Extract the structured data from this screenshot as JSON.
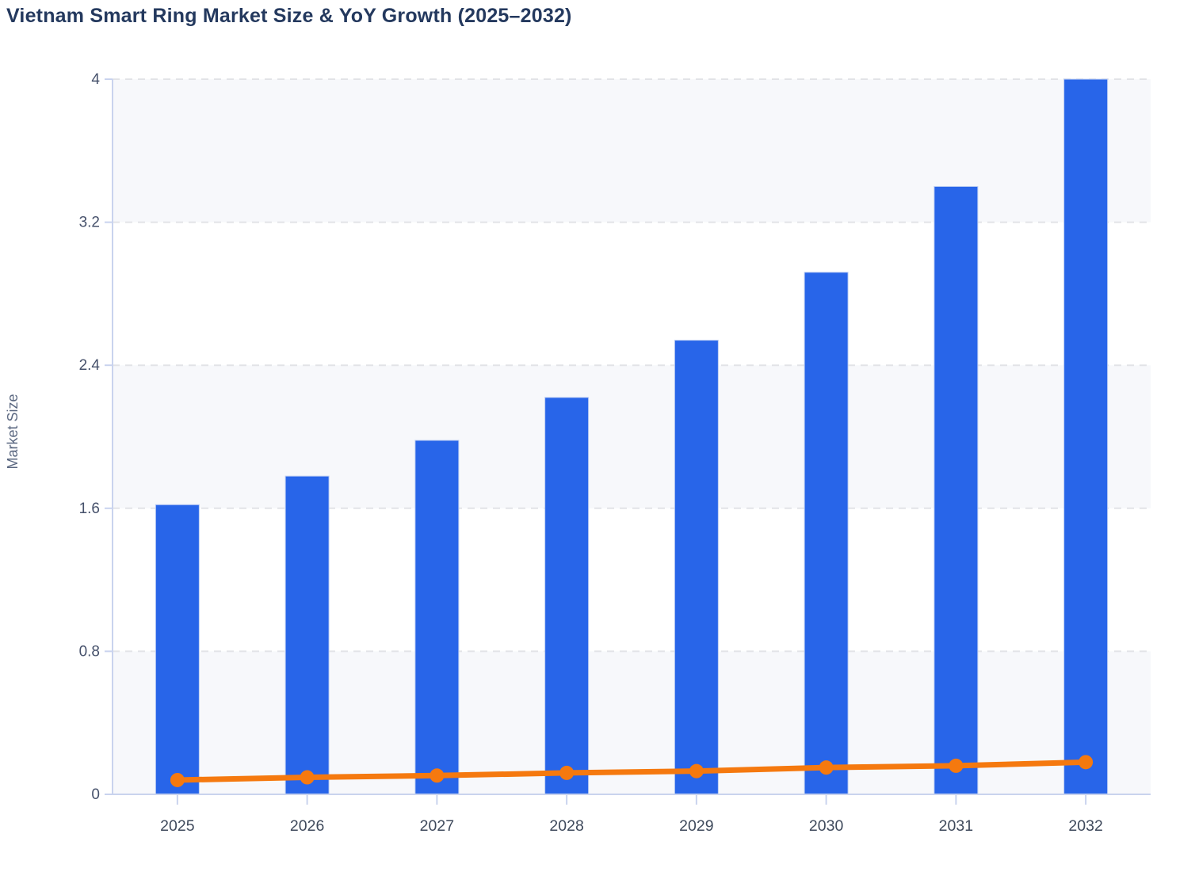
{
  "title": "Vietnam Smart Ring Market Size & YoY Growth (2025–2032)",
  "colors": {
    "bar": "#2865E9",
    "bar_stroke": "#BCCDF3",
    "line": "#F5790F",
    "title": "#24395E",
    "axis_line": "#C9D3EE",
    "grid": "#E2E3E7",
    "band": "#F7F8FB",
    "y_tick_label": "#46516B",
    "x_tick_label": "#3F4A5C",
    "axis_title": "#5A6780",
    "background": "#FFFFFF"
  },
  "chart_data": {
    "type": "bar",
    "title": "Vietnam Smart Ring Market Size & YoY Growth (2025–2032)",
    "categories": [
      "2025",
      "2026",
      "2027",
      "2028",
      "2029",
      "2030",
      "2031",
      "2032"
    ],
    "series": [
      {
        "name": "Market Size",
        "type": "bar",
        "values": [
          1.62,
          1.78,
          1.98,
          2.22,
          2.54,
          2.92,
          3.4,
          4.0
        ],
        "color": "#2865E9"
      },
      {
        "name": "YoY Growth",
        "type": "line",
        "values": [
          0.08,
          0.095,
          0.105,
          0.12,
          0.13,
          0.15,
          0.16,
          0.18
        ],
        "color": "#F5790F"
      }
    ],
    "xlabel": "",
    "ylabel": "Market Size",
    "ylim": [
      0,
      4
    ],
    "yticks": [
      0,
      0.8,
      1.6,
      2.4,
      3.2,
      4
    ],
    "grid": "horizontal-dashed",
    "alternating_bands": [
      [
        0,
        0.8
      ],
      [
        1.6,
        2.4
      ],
      [
        3.2,
        4
      ]
    ],
    "legend_position": "none"
  }
}
